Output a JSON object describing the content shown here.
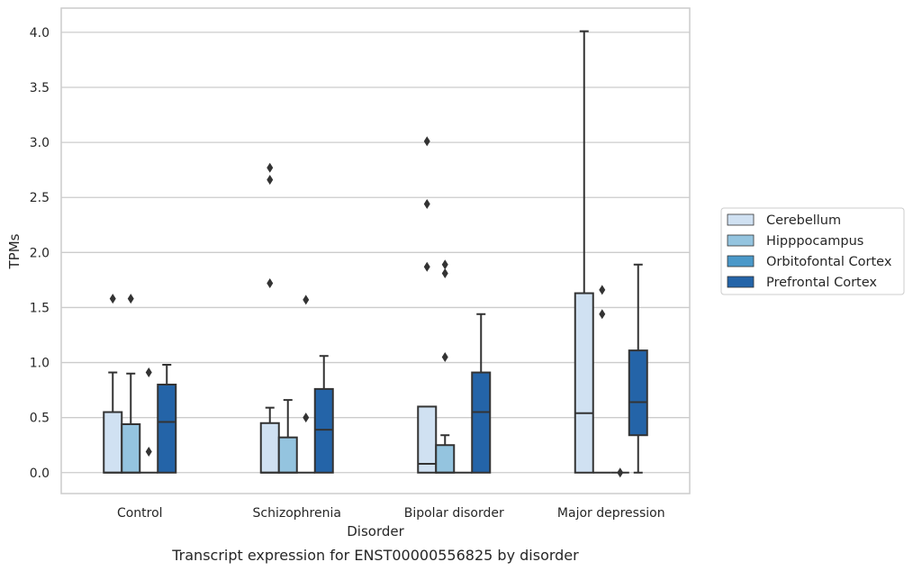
{
  "chart_data": {
    "type": "box",
    "title": "",
    "caption": "Transcript expression for ENST00000556825 by disorder",
    "xlabel": "Disorder",
    "ylabel": "TPMs",
    "ylim": [
      -0.19,
      4.22
    ],
    "yticks": [
      "0.0",
      "0.5",
      "1.0",
      "1.5",
      "2.0",
      "2.5",
      "3.0",
      "3.5",
      "4.0"
    ],
    "grid": "horizontal",
    "legend_position": "right",
    "categories": [
      "Control",
      "Schizophrenia",
      "Bipolar disorder",
      "Major depression"
    ],
    "series": [
      {
        "name": "Cerebellum",
        "color": "#d0e1f2",
        "boxes": [
          {
            "q1": 0.0,
            "median": 0.0,
            "q3": 0.55,
            "whislo": 0.0,
            "whishi": 0.91,
            "fliers": [
              1.58
            ]
          },
          {
            "q1": 0.0,
            "median": 0.0,
            "q3": 0.45,
            "whislo": 0.0,
            "whishi": 0.59,
            "fliers": [
              1.72,
              2.66,
              2.77
            ]
          },
          {
            "q1": 0.0,
            "median": 0.08,
            "q3": 0.6,
            "whislo": 0.0,
            "whishi": 0.6,
            "fliers": [
              1.87,
              2.44,
              3.01
            ]
          },
          {
            "q1": 0.0,
            "median": 0.54,
            "q3": 1.63,
            "whislo": 0.0,
            "whishi": 4.01,
            "fliers": []
          }
        ]
      },
      {
        "name": "Hipppocampus",
        "color": "#94c4df",
        "boxes": [
          {
            "q1": 0.0,
            "median": 0.0,
            "q3": 0.44,
            "whislo": 0.0,
            "whishi": 0.9,
            "fliers": [
              1.58
            ]
          },
          {
            "q1": 0.0,
            "median": 0.0,
            "q3": 0.32,
            "whislo": 0.0,
            "whishi": 0.66,
            "fliers": []
          },
          {
            "q1": 0.0,
            "median": 0.0,
            "q3": 0.25,
            "whislo": 0.0,
            "whishi": 0.34,
            "fliers": [
              1.05,
              1.81,
              1.89
            ]
          },
          {
            "q1": 0.0,
            "median": 0.0,
            "q3": 0.0,
            "whislo": 0.0,
            "whishi": 0.0,
            "fliers": [
              1.44,
              1.66
            ]
          }
        ]
      },
      {
        "name": "Orbitofontal Cortex",
        "color": "#4a98c9",
        "boxes": [
          {
            "q1": 0.0,
            "median": 0.0,
            "q3": 0.0,
            "whislo": 0.0,
            "whishi": 0.0,
            "fliers": [
              0.19,
              0.91
            ]
          },
          {
            "q1": 0.0,
            "median": 0.0,
            "q3": 0.0,
            "whislo": 0.0,
            "whishi": 0.0,
            "fliers": [
              0.5,
              1.57
            ]
          },
          {
            "q1": 0.0,
            "median": 0.0,
            "q3": 0.0,
            "whislo": 0.0,
            "whishi": 0.0,
            "fliers": []
          },
          {
            "q1": 0.0,
            "median": 0.0,
            "q3": 0.0,
            "whislo": 0.0,
            "whishi": 0.0,
            "fliers": [
              0.0
            ]
          }
        ]
      },
      {
        "name": "Prefrontal Cortex",
        "color": "#2464a8",
        "boxes": [
          {
            "q1": 0.0,
            "median": 0.46,
            "q3": 0.8,
            "whislo": 0.0,
            "whishi": 0.98,
            "fliers": []
          },
          {
            "q1": 0.0,
            "median": 0.39,
            "q3": 0.76,
            "whislo": 0.0,
            "whishi": 1.06,
            "fliers": []
          },
          {
            "q1": 0.0,
            "median": 0.55,
            "q3": 0.91,
            "whislo": 0.0,
            "whishi": 1.44,
            "fliers": []
          },
          {
            "q1": 0.34,
            "median": 0.64,
            "q3": 1.11,
            "whislo": 0.0,
            "whishi": 1.89,
            "fliers": []
          }
        ]
      }
    ]
  }
}
